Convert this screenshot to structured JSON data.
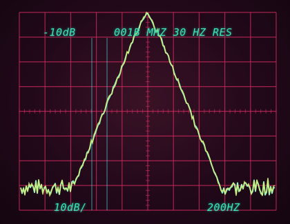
{
  "readouts": {
    "top_left": "-10dB",
    "top_center": "001B MHZ 30 HZ RES",
    "bottom_left": "10dB/",
    "bottom_right": "200HZ"
  },
  "colors": {
    "graticule": "#c8285a",
    "trace": "#8ef0c8",
    "trace_noise": "#d8f070",
    "readout": "#3fe0b8"
  }
}
